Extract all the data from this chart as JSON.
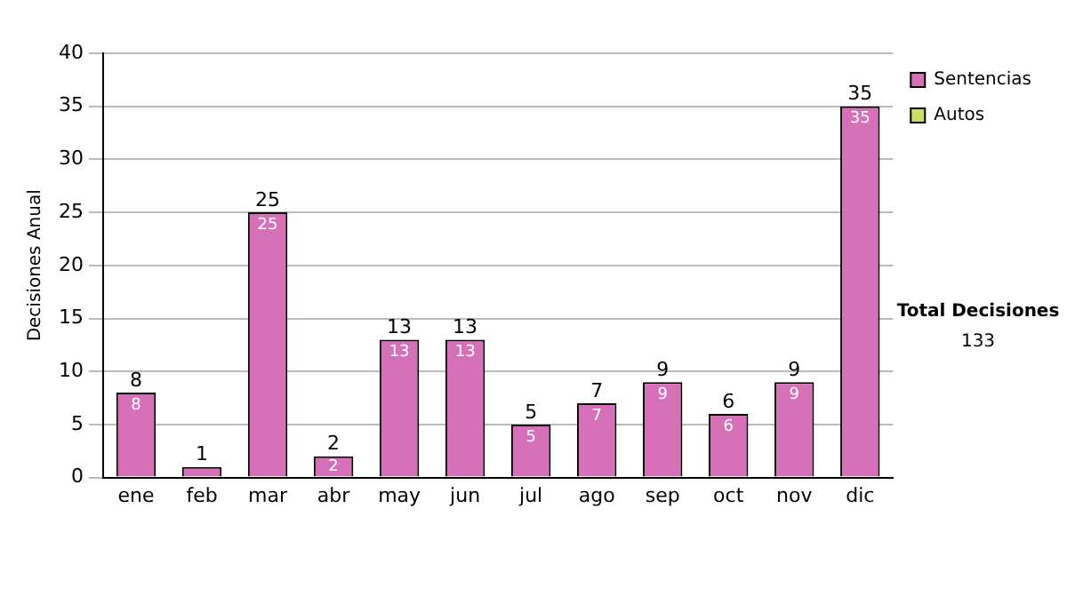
{
  "chart_data": {
    "type": "bar",
    "ylabel": "Decisiones Anual",
    "categories": [
      "ene",
      "feb",
      "mar",
      "abr",
      "may",
      "jun",
      "jul",
      "ago",
      "sep",
      "oct",
      "nov",
      "dic"
    ],
    "series": [
      {
        "name": "Sentencias",
        "color": "#d670b8",
        "values": [
          8,
          1,
          25,
          2,
          13,
          13,
          5,
          7,
          9,
          6,
          9,
          35
        ],
        "value_labels": [
          "8",
          null,
          "25",
          "2",
          "13",
          "13",
          "5",
          "7",
          "9",
          "6",
          "9",
          "35"
        ]
      },
      {
        "name": "Autos",
        "color": "#ccdd66",
        "values": [
          null,
          null,
          null,
          null,
          null,
          null,
          null,
          null,
          null,
          null,
          null,
          null
        ]
      }
    ],
    "stacked": true,
    "totals": [
      "8",
      "1",
      "25",
      "2",
      "13",
      "13",
      "5",
      "7",
      "9",
      "6",
      "9",
      "35"
    ],
    "ylim": [
      0,
      40
    ],
    "yticks": [
      0,
      5,
      10,
      15,
      20,
      25,
      30,
      35,
      40
    ],
    "grid": "y",
    "legend": "right",
    "annotations": [
      "Total Decisiones",
      "133"
    ]
  }
}
